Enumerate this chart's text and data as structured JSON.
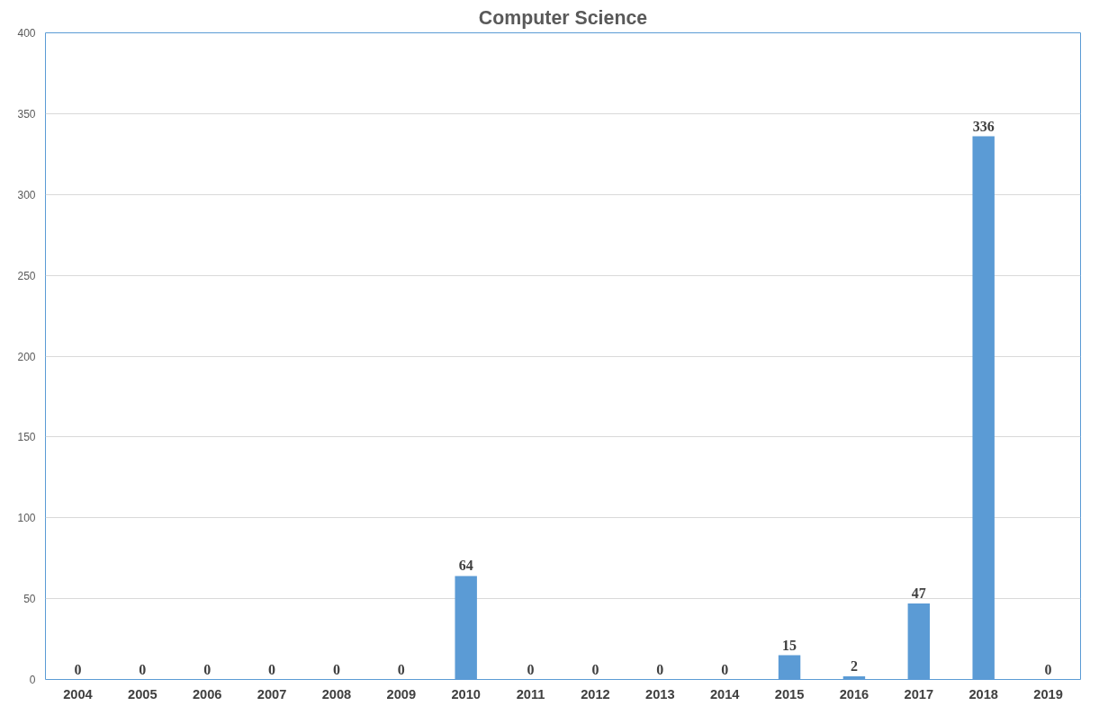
{
  "chart_data": {
    "type": "bar",
    "title": "Computer Science",
    "categories": [
      "2004",
      "2005",
      "2006",
      "2007",
      "2008",
      "2009",
      "2010",
      "2011",
      "2012",
      "2013",
      "2014",
      "2015",
      "2016",
      "2017",
      "2018",
      "2019"
    ],
    "values": [
      0,
      0,
      0,
      0,
      0,
      0,
      64,
      0,
      0,
      0,
      0,
      15,
      2,
      47,
      336,
      0
    ],
    "color": "#5b9bd5",
    "ylim": [
      0,
      400
    ],
    "yticks": [
      0,
      50,
      100,
      150,
      200,
      250,
      300,
      350,
      400
    ],
    "grid": "y",
    "data_labels": true
  }
}
